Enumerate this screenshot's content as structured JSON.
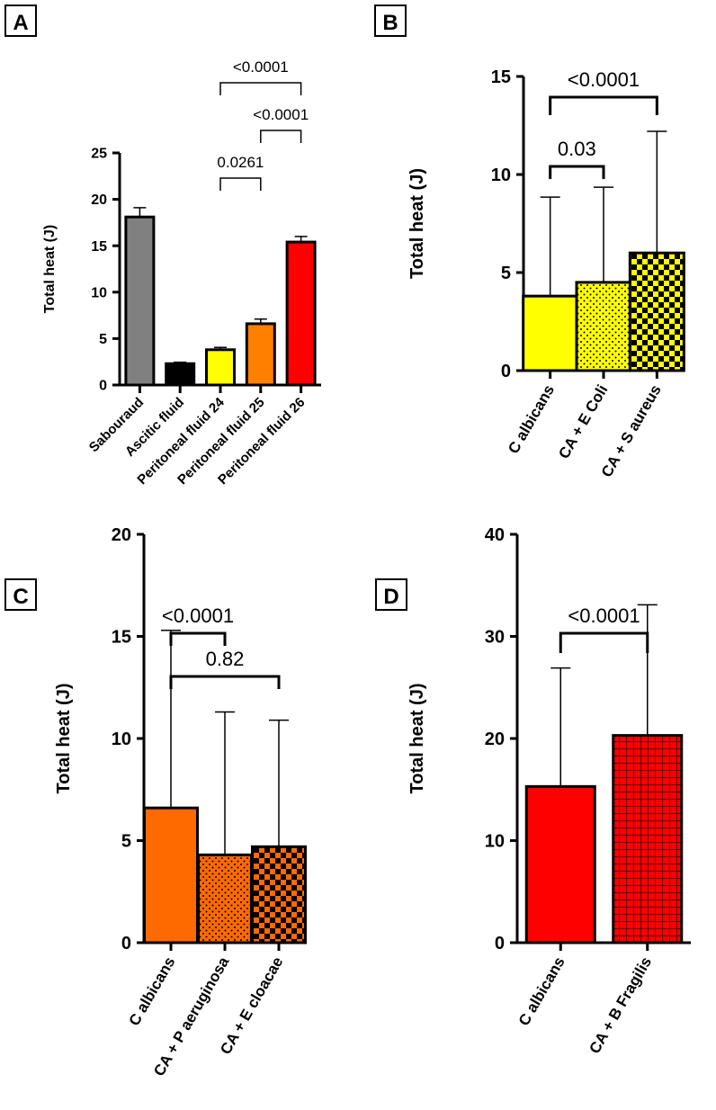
{
  "chart_data": [
    {
      "panel": "A",
      "type": "bar",
      "ylabel": "Total heat (J)",
      "ylim": [
        0,
        25
      ],
      "yticks": [
        0,
        5,
        10,
        15,
        20,
        25
      ],
      "categories": [
        "Sabouraud",
        "Ascitic fluid",
        "Peritoneal fluid 24",
        "Peritoneal fluid 25",
        "Peritoneal fluid 26"
      ],
      "values": [
        18.1,
        2.3,
        3.8,
        6.6,
        15.4
      ],
      "errors": [
        1.0,
        0.15,
        0.25,
        0.5,
        0.6
      ],
      "colors": [
        "#808080",
        "#000000",
        "#ffff00",
        "#ff8000",
        "#ff0000"
      ],
      "patterns": [
        "none",
        "none",
        "none",
        "none",
        "none"
      ],
      "comparisons": [
        {
          "from": 2,
          "to": 4,
          "label": "<0.0001"
        },
        {
          "from": 3,
          "to": 4,
          "label": "<0.0001"
        },
        {
          "from": 2,
          "to": 3,
          "label": "0.0261"
        }
      ]
    },
    {
      "panel": "B",
      "type": "bar",
      "ylabel": "Total heat (J)",
      "ylim": [
        0,
        15
      ],
      "yticks": [
        0,
        5,
        10,
        15
      ],
      "categories": [
        "C albicans",
        "CA + E Coli",
        "CA + S aureus"
      ],
      "values": [
        3.8,
        4.5,
        6.0
      ],
      "errors": [
        5.05,
        4.85,
        6.2
      ],
      "colors": [
        "#ffff00",
        "#ffff00",
        "#ffff00"
      ],
      "patterns": [
        "none",
        "dots",
        "checker"
      ],
      "comparisons": [
        {
          "from": 0,
          "to": 2,
          "label": "<0.0001"
        },
        {
          "from": 0,
          "to": 1,
          "label": "0.03"
        }
      ]
    },
    {
      "panel": "C",
      "type": "bar",
      "ylabel": "Total heat (J)",
      "ylim": [
        0,
        20
      ],
      "yticks": [
        0,
        5,
        10,
        15,
        20
      ],
      "categories": [
        "C albicans",
        "CA + P aeruginosa",
        "CA + E cloacae"
      ],
      "values": [
        6.6,
        4.3,
        4.7
      ],
      "errors": [
        8.7,
        7.0,
        6.2
      ],
      "colors": [
        "#ff6a00",
        "#ff6a00",
        "#ff6a00"
      ],
      "patterns": [
        "none",
        "dots",
        "checker"
      ],
      "comparisons": [
        {
          "from": 0,
          "to": 1,
          "label": "<0.0001"
        },
        {
          "from": 0,
          "to": 2,
          "label": "0.82"
        }
      ]
    },
    {
      "panel": "D",
      "type": "bar",
      "ylabel": "Total heat (J)",
      "ylim": [
        0,
        40
      ],
      "yticks": [
        0,
        10,
        20,
        30,
        40
      ],
      "categories": [
        "C albicans",
        "CA + B Fragilis"
      ],
      "values": [
        15.3,
        20.3
      ],
      "errors": [
        11.6,
        12.8
      ],
      "colors": [
        "#ff0000",
        "#ff0000"
      ],
      "patterns": [
        "none",
        "grid"
      ],
      "comparisons": [
        {
          "from": 0,
          "to": 1,
          "label": "<0.0001"
        }
      ]
    }
  ]
}
